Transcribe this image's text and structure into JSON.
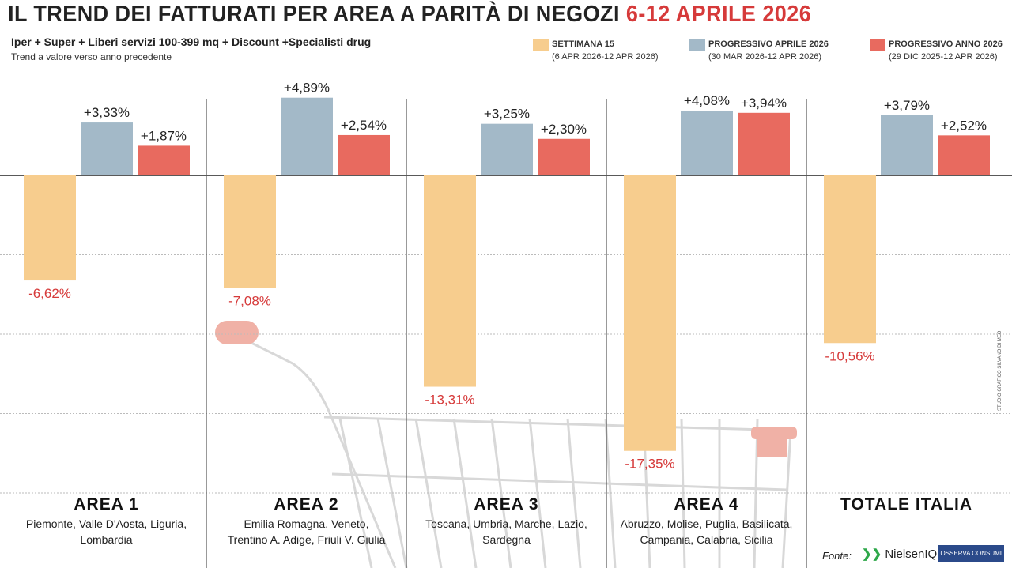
{
  "header": {
    "title": "IL TREND DEI FATTURATI PER AREA A PARITÀ DI NEGOZI",
    "title_date": "6-12 APRILE 2026",
    "subtitle": "Iper + Super + Liberi servizi 100-399 mq + Discount +Specialisti drug",
    "note": "Trend a valore verso anno precedente"
  },
  "footer": {
    "source_label": "Fonte:",
    "source_1": "NielsenIQ",
    "source_2": "OSSERVA CONSUMI",
    "credit": "STUDIO GRAFICO SILVANO DI MEO"
  },
  "chart_data": {
    "type": "bar",
    "ylim": [
      -20,
      5
    ],
    "grid": true,
    "legend": "top-right",
    "categories": [
      {
        "name": "AREA 1",
        "regions": [
          "Piemonte, Valle D'Aosta, Liguria,",
          "Lombardia"
        ]
      },
      {
        "name": "AREA 2",
        "regions": [
          "Emilia Romagna, Veneto,",
          "Trentino A. Adige, Friuli V. Giulia"
        ]
      },
      {
        "name": "AREA 3",
        "regions": [
          "Toscana, Umbria, Marche, Lazio,",
          "Sardegna"
        ]
      },
      {
        "name": "AREA 4",
        "regions": [
          "Abruzzo, Molise, Puglia, Basilicata,",
          "Campania, Calabria, Sicilia"
        ]
      },
      {
        "name": "TOTALE ITALIA",
        "regions": []
      }
    ],
    "series": [
      {
        "name": "SETTIMANA 15",
        "period": "(6 APR 2026-12 APR 2026)",
        "color": "#f7cd8e",
        "values": [
          -6.62,
          -7.08,
          -13.31,
          -17.35,
          -10.56
        ],
        "labels": [
          "-6,62%",
          "-7,08%",
          "-13,31%",
          "-17,35%",
          "-10,56%"
        ]
      },
      {
        "name": "PROGRESSIVO APRILE 2026",
        "period": "(30 MAR 2026-12 APR 2026)",
        "color": "#a3b9c8",
        "values": [
          3.33,
          4.89,
          3.25,
          4.08,
          3.79
        ],
        "labels": [
          "+3,33%",
          "+4,89%",
          "+3,25%",
          "+4,08%",
          "+3,79%"
        ]
      },
      {
        "name": "PROGRESSIVO ANNO 2026",
        "period": "(29 DIC 2025-12 APR 2026)",
        "color": "#e86a5f",
        "values": [
          1.87,
          2.54,
          2.3,
          3.94,
          2.52
        ],
        "labels": [
          "+1,87%",
          "+2,54%",
          "+2,30%",
          "+3,94%",
          "+2,52%"
        ]
      }
    ],
    "negative_label_color": "#d63a3a"
  }
}
